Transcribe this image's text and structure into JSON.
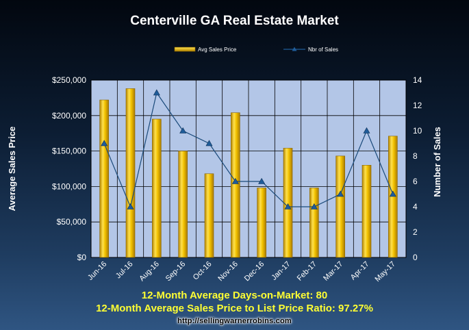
{
  "chart_data": {
    "type": "bar",
    "title": "Centerville GA Real Estate Market",
    "categories": [
      "Jun-16",
      "Jul-16",
      "Aug-16",
      "Sep-16",
      "Oct-16",
      "Nov-16",
      "Dec-16",
      "Jan-17",
      "Feb-17",
      "Mar-17",
      "Apr-17",
      "May-17"
    ],
    "series": [
      {
        "name": "Avg Sales Price",
        "type": "bar",
        "axis": "left",
        "values": [
          222000,
          238000,
          195000,
          150000,
          118000,
          204000,
          98000,
          154000,
          98000,
          143000,
          130000,
          171000
        ]
      },
      {
        "name": "Nbr of Sales",
        "type": "line",
        "axis": "right",
        "values": [
          9,
          4,
          13,
          10,
          9,
          6,
          6,
          4,
          4,
          5,
          10,
          5
        ]
      }
    ],
    "ylabel": "Average Sales Price",
    "y2label": "Number of Sales",
    "ylim": [
      0,
      250000
    ],
    "y2lim": [
      0,
      14
    ],
    "yticks": [
      "$0",
      "$50,000",
      "$100,000",
      "$150,000",
      "$200,000",
      "$250,000"
    ],
    "y2ticks": [
      "0",
      "2",
      "4",
      "6",
      "8",
      "10",
      "12",
      "14"
    ],
    "legend_position": "top",
    "grid": true,
    "colors": {
      "bar": "#f2c100",
      "line": "#1a4a7a",
      "plot_bg": "#b3c6e7"
    }
  },
  "notes": {
    "days_on_market": "12-Month Average Days-on-Market: 80",
    "price_ratio": "12-Month Average Sales Price to List Price Ratio: 97.27%"
  },
  "website": "http://sellingwarnerrobins.com"
}
